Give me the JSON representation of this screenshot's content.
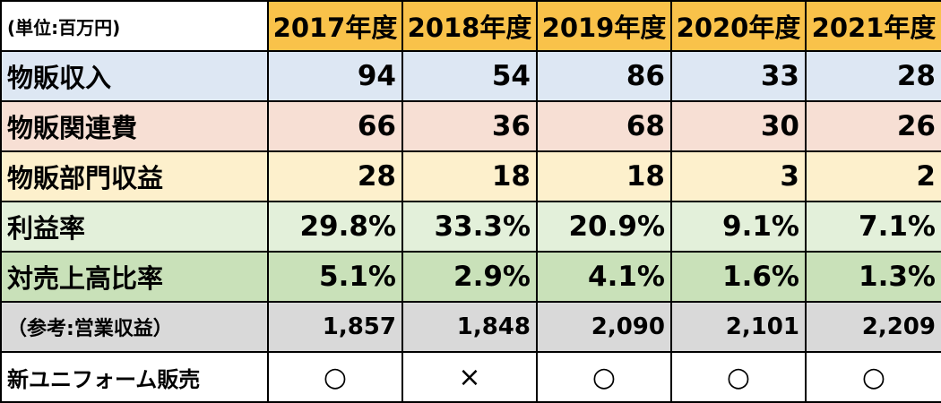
{
  "unit_label": "(単位:百万円)",
  "years": [
    "2017年度",
    "2018年度",
    "2019年度",
    "2020年度",
    "2021年度"
  ],
  "rows": [
    {
      "label": "物販収入",
      "color": "#dde7f3",
      "values": [
        "94",
        "54",
        "86",
        "33",
        "28"
      ]
    },
    {
      "label": "物販関連費",
      "color": "#f7dfd4",
      "values": [
        "66",
        "36",
        "68",
        "30",
        "26"
      ]
    },
    {
      "label": "物販部門収益",
      "color": "#fdf0cc",
      "values": [
        "28",
        "18",
        "18",
        "3",
        "2"
      ]
    },
    {
      "label": "利益率",
      "color": "#e3f0da",
      "values": [
        "29.8%",
        "33.3%",
        "20.9%",
        "9.1%",
        "7.1%"
      ]
    },
    {
      "label": "対売上高比率",
      "color": "#c9e1b9",
      "values": [
        "5.1%",
        "2.9%",
        "4.1%",
        "1.6%",
        "1.3%"
      ]
    },
    {
      "label": "（参考:営業収益）",
      "color": "#d9d9d9",
      "values": [
        "1,857",
        "1,848",
        "2,090",
        "2,101",
        "2,209"
      ]
    },
    {
      "label": "新ユニフォーム販売",
      "color": "#ffffff",
      "values": [
        "○",
        "×",
        "○",
        "○",
        "○"
      ]
    }
  ]
}
